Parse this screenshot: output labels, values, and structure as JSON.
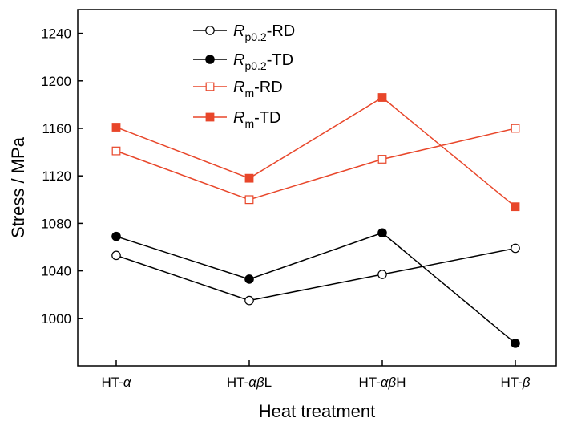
{
  "chart_data": {
    "type": "line",
    "xlabel": "Heat treatment",
    "ylabel": "Stress / MPa",
    "categories": [
      "HT-α",
      "HT-αβL",
      "HT-αβH",
      "HT-β"
    ],
    "category_labels": [
      {
        "prefix": "HT-",
        "italic": "α",
        "suffix": ""
      },
      {
        "prefix": "HT-",
        "italic": "αβ",
        "suffix": "L"
      },
      {
        "prefix": "HT-",
        "italic": "αβ",
        "suffix": "H"
      },
      {
        "prefix": "HT-",
        "italic": "β",
        "suffix": ""
      }
    ],
    "ylim": [
      960,
      1260
    ],
    "yticks": [
      1000,
      1040,
      1080,
      1120,
      1160,
      1200,
      1240
    ],
    "grid": false,
    "legend_position": "top-left",
    "series": [
      {
        "name": "Rp0.2-RD",
        "sym": "R",
        "sub": "p0.2",
        "suffix": "-RD",
        "color": "#000000",
        "marker": "circle",
        "filled": false,
        "values": [
          1053,
          1015,
          1037,
          1059
        ]
      },
      {
        "name": "Rp0.2-TD",
        "sym": "R",
        "sub": "p0.2",
        "suffix": "-TD",
        "color": "#000000",
        "marker": "circle",
        "filled": true,
        "values": [
          1069,
          1033,
          1072,
          979
        ]
      },
      {
        "name": "Rm-RD",
        "sym": "R",
        "sub": "m",
        "suffix": "-RD",
        "color": "#e8462a",
        "marker": "square",
        "filled": false,
        "values": [
          1141,
          1100,
          1134,
          1160
        ]
      },
      {
        "name": "Rm-TD",
        "sym": "R",
        "sub": "m",
        "suffix": "-TD",
        "color": "#e8462a",
        "marker": "square",
        "filled": true,
        "values": [
          1161,
          1118,
          1186,
          1094
        ]
      }
    ]
  }
}
